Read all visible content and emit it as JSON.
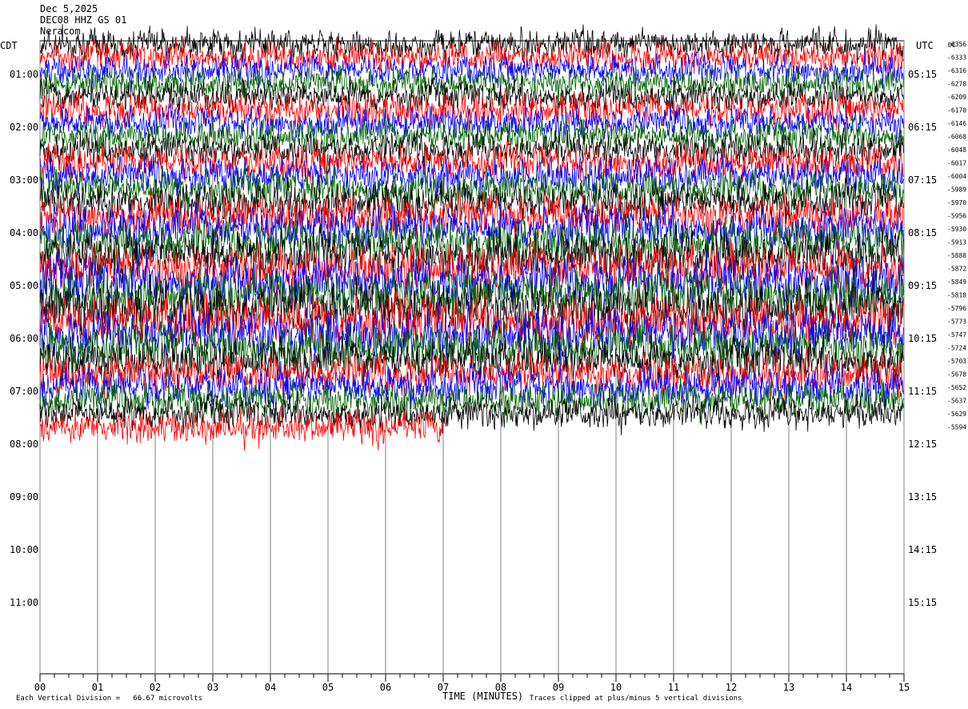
{
  "header": {
    "date": "Dec 5,2025",
    "station": "DEC08 HHZ GS 01",
    "network": "Neracom"
  },
  "left_axis_title": "CDT",
  "right_axis_title": "UTC",
  "dc_title": "DC",
  "footer": {
    "scale_note": "Each Vertical Division =   66.67 microvolts",
    "xlabel": "TIME (MINUTES)",
    "clip_note": "Traces clipped at plus/minus 5 vertical divisions"
  },
  "colors": {
    "cycle": [
      "#000000",
      "#ff0000",
      "#0000ff",
      "#006400"
    ],
    "grid": "#808080"
  },
  "chart_data": {
    "type": "line",
    "title": "",
    "xlabel": "TIME (MINUTES)",
    "ylabel": "",
    "x_ticks": [
      "00",
      "01",
      "02",
      "03",
      "04",
      "05",
      "06",
      "07",
      "08",
      "09",
      "10",
      "11",
      "12",
      "13",
      "14",
      "15"
    ],
    "xlim": [
      0,
      15
    ],
    "trace_minutes": 15,
    "lines_per_hour": 4,
    "left_time_labels": [
      "01:00",
      "02:00",
      "03:00",
      "04:00",
      "05:00",
      "06:00",
      "07:00",
      "08:00",
      "09:00",
      "10:00",
      "11:00"
    ],
    "right_time_labels": [
      "05:15",
      "06:15",
      "07:15",
      "08:15",
      "09:15",
      "10:15",
      "11:15",
      "12:15",
      "13:15",
      "14:15",
      "15:15"
    ],
    "dc_offsets": [
      "-6356",
      "-6333",
      "-6316",
      "-6278",
      "-6209",
      "-6170",
      "-6146",
      "-6068",
      "-6048",
      "-6017",
      "-6004",
      "-5989",
      "-5970",
      "-5956",
      "-5930",
      "-5913",
      "-5888",
      "-5872",
      "-5849",
      "-5818",
      "-5796",
      "-5773",
      "-5747",
      "-5724",
      "-5703",
      "-5678",
      "-5652",
      "-5637",
      "-5629",
      "-5594"
    ],
    "trace_count": 30,
    "last_trace_end_minute": 7,
    "trace_rms_divisions": [
      2.2,
      2.2,
      2.1,
      2.1,
      2.3,
      2.4,
      2.2,
      2.3,
      2.4,
      2.5,
      2.6,
      2.7,
      2.8,
      3.0,
      3.1,
      3.2,
      3.3,
      3.4,
      3.6,
      3.6,
      3.7,
      3.7,
      3.6,
      3.4,
      3.1,
      2.9,
      2.8,
      2.6,
      2.4,
      2.3
    ]
  }
}
